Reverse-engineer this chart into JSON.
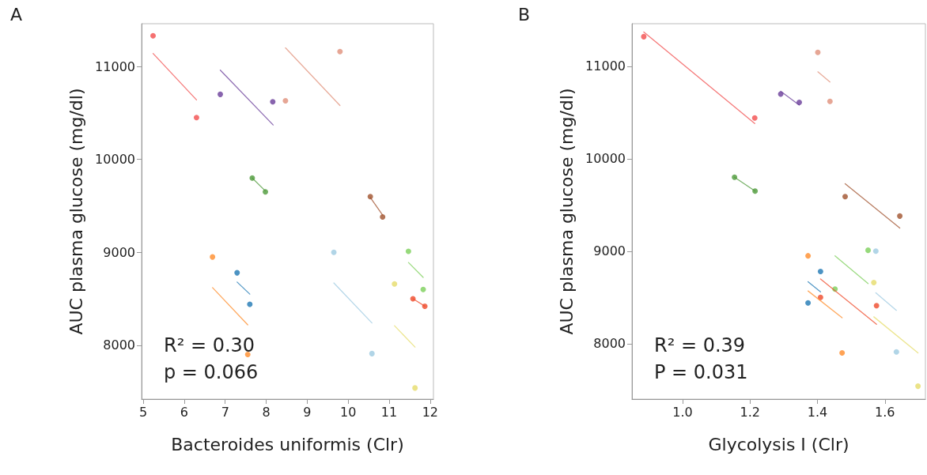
{
  "chart_data": [
    {
      "type": "scatter",
      "title": "A",
      "xlabel": "Bacteroides uniformis (Clr)",
      "ylabel": "AUC plasma glucose (mg/dl)",
      "annotations": [
        "R² = 0.30",
        "p = 0.066"
      ],
      "xlim": [
        4.96,
        12.08
      ],
      "ylim": [
        7420,
        11460
      ],
      "xticks": [
        5,
        6,
        7,
        8,
        9,
        10,
        11,
        12
      ],
      "yticks": [
        8000,
        9000,
        10000,
        11000
      ],
      "grid": false,
      "marker": "circle",
      "series": [
        {
          "color": "#f24d4d",
          "x": [
            5.24,
            6.3
          ],
          "values": [
            11330,
            10450
          ]
        },
        {
          "type": "line",
          "marker": "none",
          "color": "#f24d4d",
          "x": [
            5.24,
            6.3
          ],
          "values": [
            11140,
            10640
          ]
        },
        {
          "color": "#6a3d9a",
          "x": [
            6.88,
            8.16
          ],
          "values": [
            10700,
            10620
          ]
        },
        {
          "type": "line",
          "marker": "none",
          "color": "#6a3d9a",
          "x": [
            6.88,
            8.17
          ],
          "values": [
            10960,
            10370
          ]
        },
        {
          "color": "#e0907a",
          "x": [
            8.47,
            9.8
          ],
          "values": [
            10630,
            11160
          ]
        },
        {
          "type": "line",
          "marker": "none",
          "color": "#e0907a",
          "x": [
            8.47,
            9.8
          ],
          "values": [
            11200,
            10580
          ]
        },
        {
          "color": "#4d9a3a",
          "x": [
            7.66,
            7.98
          ],
          "values": [
            9800,
            9650
          ]
        },
        {
          "type": "line",
          "marker": "none",
          "color": "#4d9a3a",
          "x": [
            7.66,
            7.98
          ],
          "values": [
            9800,
            9660
          ]
        },
        {
          "color": "#a0522d",
          "x": [
            10.54,
            10.84
          ],
          "values": [
            9600,
            9380
          ]
        },
        {
          "type": "line",
          "marker": "none",
          "color": "#a0522d",
          "x": [
            10.54,
            10.84
          ],
          "values": [
            9590,
            9400
          ]
        },
        {
          "color": "#ff8c2a",
          "x": [
            6.69,
            7.55
          ],
          "values": [
            8950,
            7900
          ]
        },
        {
          "type": "line",
          "marker": "none",
          "color": "#ff8c2a",
          "x": [
            6.69,
            7.55
          ],
          "values": [
            8620,
            8220
          ]
        },
        {
          "color": "#1f78b4",
          "x": [
            7.29,
            7.6
          ],
          "values": [
            8780,
            8440
          ]
        },
        {
          "type": "line",
          "marker": "none",
          "color": "#1f78b4",
          "x": [
            7.29,
            7.6
          ],
          "values": [
            8680,
            8550
          ]
        },
        {
          "color": "#9ecae1",
          "x": [
            9.65,
            10.58
          ],
          "values": [
            9000,
            7910
          ]
        },
        {
          "type": "line",
          "marker": "none",
          "color": "#9ecae1",
          "x": [
            9.65,
            10.58
          ],
          "values": [
            8670,
            8240
          ]
        },
        {
          "color": "#7ccf5a",
          "x": [
            11.47,
            11.83
          ],
          "values": [
            9010,
            8600
          ]
        },
        {
          "type": "line",
          "marker": "none",
          "color": "#7ccf5a",
          "x": [
            11.47,
            11.83
          ],
          "values": [
            8890,
            8730
          ]
        },
        {
          "color": "#ef4a2a",
          "x": [
            11.58,
            11.87
          ],
          "values": [
            8500,
            8420
          ]
        },
        {
          "type": "line",
          "marker": "none",
          "color": "#ef4a2a",
          "x": [
            11.58,
            11.87
          ],
          "values": [
            8500,
            8420
          ]
        },
        {
          "color": "#e6dc6a",
          "x": [
            11.13,
            11.63
          ],
          "values": [
            8660,
            7540
          ]
        },
        {
          "type": "line",
          "marker": "none",
          "color": "#e6dc6a",
          "x": [
            11.13,
            11.63
          ],
          "values": [
            8210,
            7980
          ]
        }
      ]
    },
    {
      "type": "scatter",
      "title": "B",
      "xlabel": "Glycolysis I (Clr)",
      "ylabel": "AUC plasma glucose (mg/dl)",
      "annotations": [
        "R² = 0.39",
        "P = 0.031"
      ],
      "xlim": [
        0.85,
        1.72
      ],
      "ylim": [
        7400,
        11460
      ],
      "xticks": [
        {
          "value": 1,
          "label": "1.0"
        },
        1.2,
        1.4,
        1.6
      ],
      "yticks": [
        8000,
        9000,
        10000,
        11000
      ],
      "grid": false,
      "marker": "circle",
      "series": [
        {
          "color": "#f24d4d",
          "x": [
            0.885,
            1.214
          ],
          "values": [
            11320,
            10440
          ]
        },
        {
          "type": "line",
          "marker": "none",
          "color": "#f24d4d",
          "x": [
            0.885,
            1.214
          ],
          "values": [
            11370,
            10380
          ]
        },
        {
          "color": "#6a3d9a",
          "x": [
            1.291,
            1.346
          ],
          "values": [
            10700,
            10610
          ]
        },
        {
          "type": "line",
          "marker": "none",
          "color": "#6a3d9a",
          "x": [
            1.291,
            1.346
          ],
          "values": [
            10730,
            10580
          ]
        },
        {
          "color": "#e0907a",
          "x": [
            1.401,
            1.437
          ],
          "values": [
            11150,
            10620
          ]
        },
        {
          "type": "line",
          "marker": "none",
          "color": "#e0907a",
          "x": [
            1.401,
            1.437
          ],
          "values": [
            10940,
            10830
          ]
        },
        {
          "color": "#4d9a3a",
          "x": [
            1.154,
            1.215
          ],
          "values": [
            9800,
            9650
          ]
        },
        {
          "type": "line",
          "marker": "none",
          "color": "#4d9a3a",
          "x": [
            1.154,
            1.215
          ],
          "values": [
            9800,
            9650
          ]
        },
        {
          "color": "#a0522d",
          "x": [
            1.482,
            1.644
          ],
          "values": [
            9590,
            9380
          ]
        },
        {
          "type": "line",
          "marker": "none",
          "color": "#a0522d",
          "x": [
            1.482,
            1.644
          ],
          "values": [
            9730,
            9250
          ]
        },
        {
          "color": "#ff8c2a",
          "x": [
            1.372,
            1.473
          ],
          "values": [
            8950,
            7900
          ]
        },
        {
          "type": "line",
          "marker": "none",
          "color": "#ff8c2a",
          "x": [
            1.372,
            1.473
          ],
          "values": [
            8570,
            8280
          ]
        },
        {
          "color": "#1f78b4",
          "x": [
            1.409,
            1.372
          ],
          "values": [
            8780,
            8440
          ]
        },
        {
          "type": "line",
          "marker": "none",
          "color": "#1f78b4",
          "x": [
            1.372,
            1.409
          ],
          "values": [
            8670,
            8560
          ]
        },
        {
          "color": "#9ecae1",
          "x": [
            1.573,
            1.634
          ],
          "values": [
            9000,
            7910
          ]
        },
        {
          "type": "line",
          "marker": "none",
          "color": "#9ecae1",
          "x": [
            1.573,
            1.634
          ],
          "values": [
            8550,
            8360
          ]
        },
        {
          "color": "#7ccf5a",
          "x": [
            1.55,
            1.452
          ],
          "values": [
            9010,
            8590
          ]
        },
        {
          "type": "line",
          "marker": "none",
          "color": "#7ccf5a",
          "x": [
            1.452,
            1.55
          ],
          "values": [
            8950,
            8650
          ]
        },
        {
          "color": "#ef4a2a",
          "x": [
            1.409,
            1.575
          ],
          "values": [
            8500,
            8410
          ]
        },
        {
          "type": "line",
          "marker": "none",
          "color": "#ef4a2a",
          "x": [
            1.409,
            1.575
          ],
          "values": [
            8700,
            8210
          ]
        },
        {
          "color": "#e6dc6a",
          "x": [
            1.567,
            1.698
          ],
          "values": [
            8660,
            7540
          ]
        },
        {
          "type": "line",
          "marker": "none",
          "color": "#e6dc6a",
          "x": [
            1.567,
            1.698
          ],
          "values": [
            8290,
            7900
          ]
        }
      ]
    }
  ]
}
